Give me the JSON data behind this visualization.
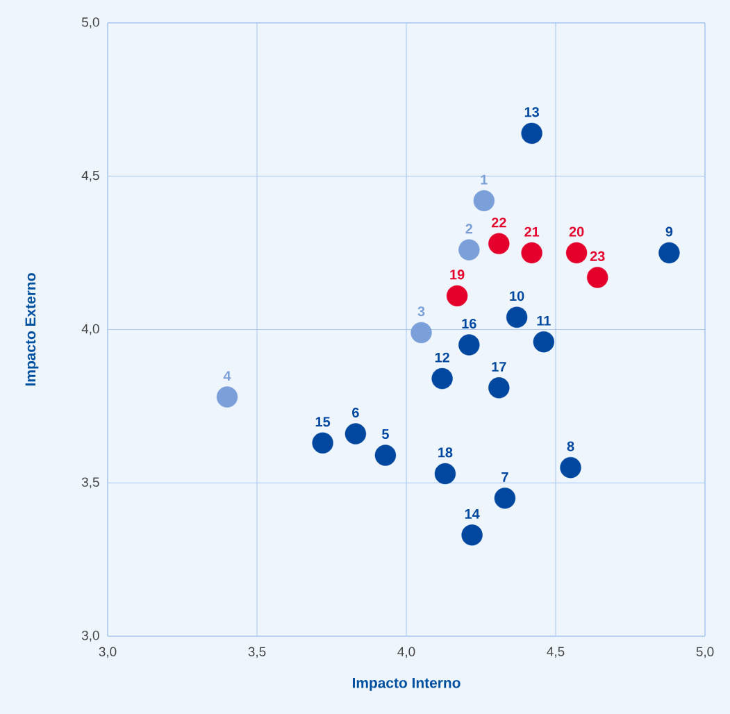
{
  "chart_data": {
    "type": "scatter",
    "xlabel": "Impacto Interno",
    "ylabel": "Impacto Externo",
    "xlim": [
      3,
      5
    ],
    "ylim": [
      3,
      5
    ],
    "xticks": [
      {
        "value": 3,
        "label": "3,0"
      },
      {
        "value": 3.5,
        "label": "3,5"
      },
      {
        "value": 4,
        "label": "4,0"
      },
      {
        "value": 4.5,
        "label": "4,5"
      },
      {
        "value": 5,
        "label": "5,0"
      }
    ],
    "yticks": [
      {
        "value": 3,
        "label": "3,0"
      },
      {
        "value": 3.5,
        "label": "3,5"
      },
      {
        "value": 4,
        "label": "4,0"
      },
      {
        "value": 4.5,
        "label": "4,5"
      },
      {
        "value": 5,
        "label": "5,0"
      }
    ],
    "grid": true,
    "marker": "circle",
    "series": [
      {
        "color": "#7b9fd9",
        "x": [
          4.26,
          4.21,
          4.05,
          3.4
        ],
        "values": [
          4.42,
          4.26,
          3.99,
          3.78
        ]
      },
      {
        "color": "#0047a0",
        "x": [
          3.93,
          3.83,
          4.33,
          4.55,
          4.88,
          4.37,
          4.46,
          4.12,
          4.42,
          4.22,
          3.72,
          4.21,
          4.31,
          4.13
        ],
        "values": [
          3.59,
          3.66,
          3.45,
          3.55,
          4.25,
          4.04,
          3.96,
          3.84,
          4.64,
          3.33,
          3.63,
          3.95,
          3.81,
          3.53
        ]
      },
      {
        "color": "#e4002b",
        "x": [
          4.17,
          4.57,
          4.42,
          4.31,
          4.64
        ],
        "values": [
          4.11,
          4.25,
          4.25,
          4.28,
          4.17
        ]
      }
    ],
    "annotations": [
      {
        "text": "1",
        "x": 4.26,
        "y": 4.42
      },
      {
        "text": "2",
        "x": 4.21,
        "y": 4.26
      },
      {
        "text": "3",
        "x": 4.05,
        "y": 3.99
      },
      {
        "text": "4",
        "x": 3.4,
        "y": 3.78
      },
      {
        "text": "5",
        "x": 3.93,
        "y": 3.59
      },
      {
        "text": "6",
        "x": 3.83,
        "y": 3.66
      },
      {
        "text": "7",
        "x": 4.33,
        "y": 3.45
      },
      {
        "text": "8",
        "x": 4.55,
        "y": 3.55
      },
      {
        "text": "9",
        "x": 4.88,
        "y": 4.25
      },
      {
        "text": "10",
        "x": 4.37,
        "y": 4.04
      },
      {
        "text": "11",
        "x": 4.46,
        "y": 3.96
      },
      {
        "text": "12",
        "x": 4.12,
        "y": 3.84
      },
      {
        "text": "13",
        "x": 4.42,
        "y": 4.64
      },
      {
        "text": "14",
        "x": 4.22,
        "y": 3.33
      },
      {
        "text": "15",
        "x": 3.72,
        "y": 3.63
      },
      {
        "text": "16",
        "x": 4.21,
        "y": 3.95
      },
      {
        "text": "17",
        "x": 4.31,
        "y": 3.81
      },
      {
        "text": "18",
        "x": 4.13,
        "y": 3.53
      },
      {
        "text": "19",
        "x": 4.17,
        "y": 4.11
      },
      {
        "text": "20",
        "x": 4.57,
        "y": 4.25
      },
      {
        "text": "21",
        "x": 4.42,
        "y": 4.25
      },
      {
        "text": "22",
        "x": 4.31,
        "y": 4.28
      },
      {
        "text": "23",
        "x": 4.64,
        "y": 4.17
      }
    ]
  }
}
